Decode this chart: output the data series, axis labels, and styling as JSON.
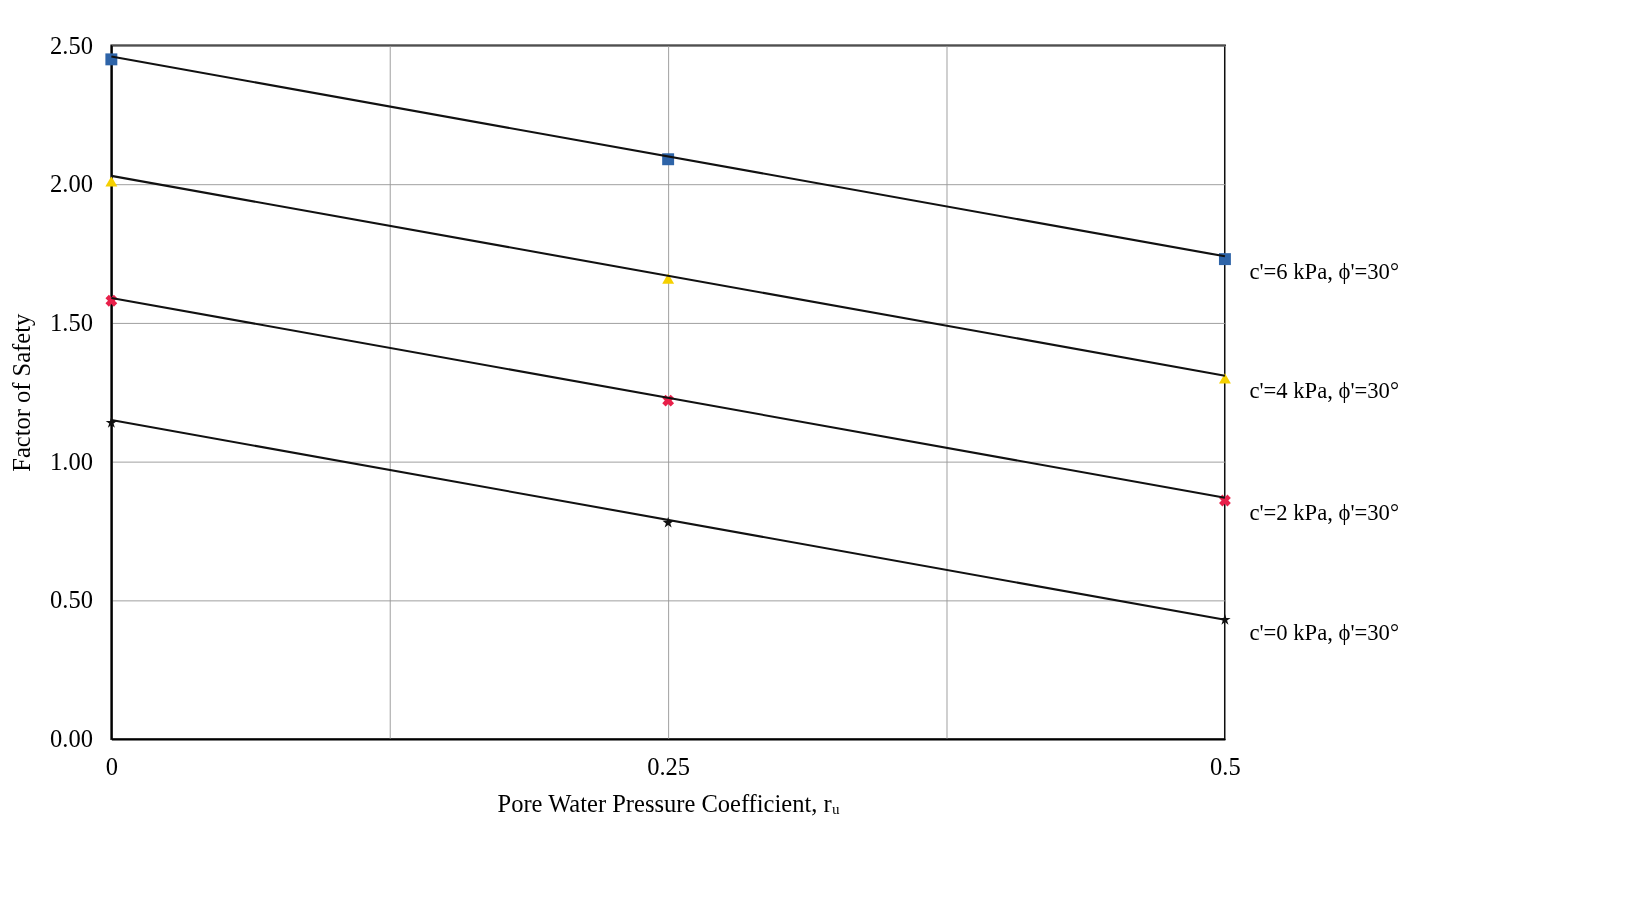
{
  "chart_data": {
    "type": "scatter",
    "xlabel": "Pore Water Pressure Coefficient, rᵤ",
    "ylabel": "Factor of Safety",
    "xlim": [
      0,
      0.5
    ],
    "xticks": [
      0,
      {
        "value": 0.125,
        "label": null
      },
      0.25,
      {
        "value": 0.375,
        "label": null
      },
      0.5
    ],
    "ylim": [
      0,
      2.5
    ],
    "yticks": [
      {
        "value": 0,
        "label": "0.00"
      },
      {
        "value": 0.5,
        "label": "0.50"
      },
      {
        "value": 1,
        "label": "1.00"
      },
      {
        "value": 1.5,
        "label": "1.50"
      },
      {
        "value": 2,
        "label": "2.00"
      },
      {
        "value": 2.5,
        "label": "2.50"
      }
    ],
    "grid": true,
    "legend": "right",
    "series": [
      {
        "name": "c'=6 kPa, ϕ'=30°",
        "marker": "square",
        "color": "#2e64a8",
        "x": [
          0,
          0.25,
          0.5
        ],
        "values": [
          2.45,
          2.09,
          1.73
        ]
      },
      {
        "name": "c'=4 kPa, ϕ'=30°",
        "marker": "triangle",
        "color": "#f5d000",
        "x": [
          0,
          0.25,
          0.5
        ],
        "values": [
          2.01,
          1.66,
          1.3
        ]
      },
      {
        "name": "c'=2 kPa, ϕ'=30°",
        "marker": "cross",
        "color": "#e8204a",
        "x": [
          0,
          0.25,
          0.5
        ],
        "values": [
          1.58,
          1.22,
          0.86
        ]
      },
      {
        "name": "c'=0 kPa, ϕ'=30°",
        "marker": "star",
        "color": "#111111",
        "x": [
          0,
          0.25,
          0.5
        ],
        "values": [
          1.14,
          0.78,
          0.43
        ]
      },
      {
        "type": "line",
        "marker": "none",
        "color": "#111111",
        "x": [
          0,
          0.5
        ],
        "values": [
          2.46,
          1.74
        ]
      },
      {
        "type": "line",
        "marker": "none",
        "color": "#111111",
        "x": [
          0,
          0.5
        ],
        "values": [
          2.03,
          1.31
        ]
      },
      {
        "type": "line",
        "marker": "none",
        "color": "#111111",
        "x": [
          0,
          0.5
        ],
        "values": [
          1.59,
          0.87
        ]
      },
      {
        "type": "line",
        "marker": "none",
        "color": "#111111",
        "x": [
          0,
          0.5
        ],
        "values": [
          1.15,
          0.43
        ]
      }
    ]
  }
}
